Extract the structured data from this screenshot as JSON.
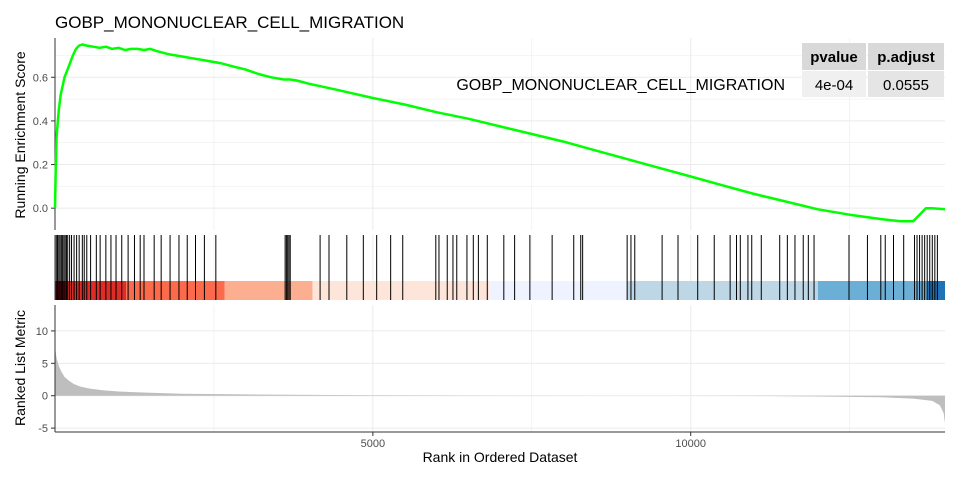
{
  "chart_data": {
    "type": "line",
    "title": "GOBP_MONONUCLEAR_CELL_MIGRATION",
    "gene_set_label": "GOBP_MONONUCLEAR_CELL_MIGRATION",
    "xlabel": "Rank in Ordered Dataset",
    "xlim": [
      0,
      14000
    ],
    "x_ticks": [
      5000,
      10000
    ],
    "x_tick_labels": [
      "5000",
      "10000"
    ],
    "grid": true,
    "colors": {
      "es_line": "#00ff00",
      "hits": "#000000",
      "metric_fill": "#bebebe",
      "grid": "#ebebeb"
    },
    "panels": {
      "enrichment": {
        "ylabel": "Running Enrichment Score",
        "ylim": [
          -0.1,
          0.78
        ],
        "y_ticks": [
          0.0,
          0.2,
          0.4,
          0.6
        ],
        "y_tick_labels": [
          "0.0",
          "0.2",
          "0.4",
          "0.6"
        ],
        "series": [
          {
            "x": [
              0,
              10,
              25,
              40,
              60,
              90,
              120,
              150,
              190,
              230,
              280,
              330,
              380,
              430,
              500,
              600,
              700,
              800,
              900,
              1000,
              1100,
              1200,
              1300,
              1400,
              1500,
              1600,
              1800,
              2000,
              2200,
              2400,
              2600,
              2800,
              3000,
              3200,
              3400,
              3600,
              3700,
              3800,
              4000,
              4400,
              5000,
              5500,
              6000,
              6500,
              7000,
              7500,
              8000,
              8500,
              9000,
              9500,
              10000,
              10500,
              11000,
              11500,
              12000,
              12500,
              13000,
              13300,
              13500,
              13600,
              13700,
              13800,
              14000
            ],
            "y": [
              0.0,
              0.15,
              0.33,
              0.38,
              0.45,
              0.52,
              0.56,
              0.6,
              0.63,
              0.66,
              0.7,
              0.73,
              0.745,
              0.75,
              0.745,
              0.74,
              0.735,
              0.74,
              0.73,
              0.735,
              0.725,
              0.73,
              0.73,
              0.725,
              0.73,
              0.72,
              0.705,
              0.695,
              0.685,
              0.675,
              0.665,
              0.65,
              0.635,
              0.615,
              0.6,
              0.59,
              0.59,
              0.585,
              0.57,
              0.545,
              0.505,
              0.475,
              0.44,
              0.41,
              0.375,
              0.34,
              0.305,
              0.265,
              0.225,
              0.185,
              0.145,
              0.105,
              0.065,
              0.03,
              -0.005,
              -0.03,
              -0.05,
              -0.06,
              -0.06,
              -0.03,
              0.0,
              0.0,
              -0.005
            ]
          }
        ]
      },
      "hits": {
        "positions": [
          20,
          40,
          60,
          80,
          100,
          120,
          140,
          160,
          180,
          200,
          230,
          260,
          300,
          340,
          380,
          430,
          460,
          500,
          560,
          650,
          710,
          800,
          880,
          960,
          1050,
          1150,
          1250,
          1340,
          1400,
          1560,
          1670,
          1810,
          1950,
          2080,
          2210,
          2350,
          2530,
          3620,
          3640,
          3660,
          3680,
          3700,
          4170,
          4310,
          4590,
          4850,
          5060,
          5280,
          5470,
          5990,
          6040,
          6170,
          6260,
          6320,
          6480,
          6580,
          6660,
          6800,
          7060,
          7230,
          7470,
          7820,
          8160,
          8270,
          8300,
          9000,
          9060,
          9120,
          9550,
          9800,
          10110,
          10370,
          10620,
          10720,
          10780,
          10900,
          10960,
          11110,
          11400,
          11520,
          11640,
          11770,
          11850,
          11940,
          12490,
          12780,
          12990,
          13060,
          13190,
          13350,
          13520,
          13560,
          13600,
          13640,
          13680,
          13720,
          13760,
          13800,
          13840,
          13880
        ],
        "gradient_bands": [
          {
            "x0": 0,
            "x1": 160,
            "color": "#a50f15"
          },
          {
            "x0": 160,
            "x1": 1120,
            "color": "#de2d26"
          },
          {
            "x0": 1120,
            "x1": 2670,
            "color": "#fb6a4a"
          },
          {
            "x0": 2670,
            "x1": 4050,
            "color": "#fcae91"
          },
          {
            "x0": 4050,
            "x1": 6830,
            "color": "#fee5d9"
          },
          {
            "x0": 6830,
            "x1": 9000,
            "color": "#eff3ff"
          },
          {
            "x0": 9000,
            "x1": 12000,
            "color": "#bdd7e7"
          },
          {
            "x0": 12000,
            "x1": 13730,
            "color": "#6baed6"
          },
          {
            "x0": 13730,
            "x1": 14000,
            "color": "#2171b5"
          }
        ]
      },
      "ranked_metric": {
        "ylabel": "Ranked List Metric",
        "ylim": [
          -5.6,
          14
        ],
        "y_ticks": [
          -5,
          0,
          5,
          10
        ],
        "y_tick_labels": [
          "-5",
          "0",
          "5",
          "10"
        ],
        "x": [
          0,
          25,
          60,
          100,
          150,
          220,
          300,
          400,
          550,
          750,
          1000,
          1500,
          2000,
          3000,
          5000,
          7000,
          8500,
          9200,
          9700,
          11000,
          12000,
          13000,
          13500,
          13800,
          13920,
          13980,
          14000
        ],
        "y": [
          7.5,
          5.8,
          4.6,
          3.7,
          2.9,
          2.3,
          1.8,
          1.4,
          1.1,
          0.85,
          0.65,
          0.45,
          0.3,
          0.2,
          0.08,
          0.02,
          0.0,
          0.0,
          0.0,
          -0.05,
          -0.12,
          -0.25,
          -0.45,
          -0.8,
          -1.5,
          -2.7,
          -4.3
        ]
      }
    },
    "stats_table": {
      "headers": [
        "pvalue",
        "p.adjust"
      ],
      "values": [
        "4e-04",
        "0.0555"
      ]
    }
  }
}
